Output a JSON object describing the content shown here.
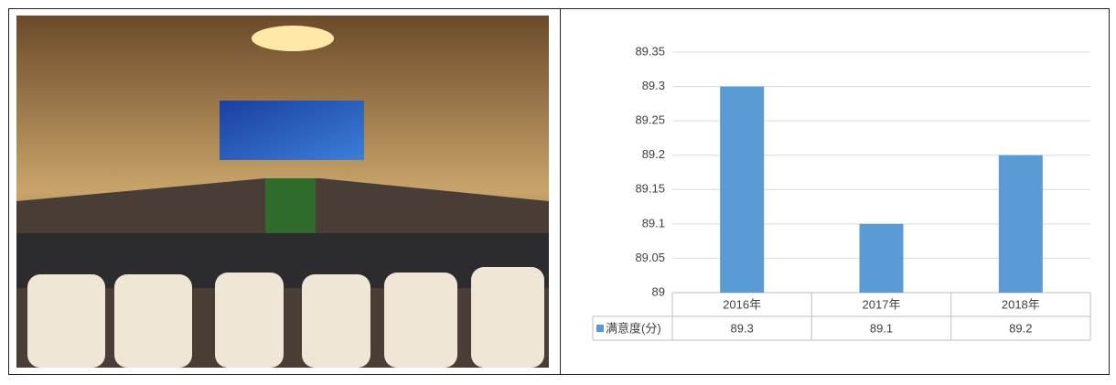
{
  "chart_data": {
    "type": "bar",
    "categories": [
      "2016年",
      "2017年",
      "2018年"
    ],
    "series": [
      {
        "name": "满意度(分)",
        "color": "#5b9bd5",
        "values": [
          89.3,
          89.1,
          89.2
        ]
      }
    ],
    "ylim": [
      89,
      89.35
    ],
    "yticks": [
      89,
      89.05,
      89.1,
      89.15,
      89.2,
      89.25,
      89.3,
      89.35
    ],
    "grid": true
  }
}
